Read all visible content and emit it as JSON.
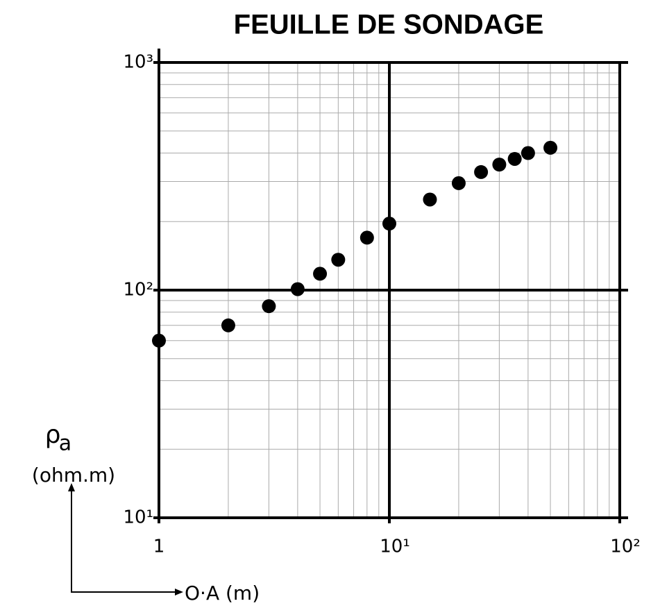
{
  "chart_data": {
    "type": "scatter",
    "title": "FEUILLE DE SONDAGE",
    "xlabel": "O·A (m)",
    "ylabel_symbol": "ρ",
    "ylabel_subscript": "a",
    "ylabel_unit": "(ohm.m)",
    "xscale": "log",
    "yscale": "log",
    "grid": true,
    "color": "#000000",
    "xlim": [
      1,
      100
    ],
    "ylim": [
      10,
      1000
    ],
    "xticks": [
      1,
      {
        "value": 10,
        "label": "10¹"
      },
      {
        "value": 100,
        "label": "10²"
      }
    ],
    "yticks": [
      {
        "value": 10,
        "label": "10¹"
      },
      {
        "value": 100,
        "label": "10²"
      },
      {
        "value": 1000,
        "label": "10³"
      }
    ],
    "minor_xticks": [
      2,
      3,
      4,
      5,
      6,
      7,
      8,
      9,
      20,
      30,
      40,
      50,
      60,
      70,
      80,
      90
    ],
    "minor_yticks": [
      20,
      30,
      40,
      50,
      60,
      70,
      80,
      90,
      200,
      300,
      400,
      500,
      600,
      700,
      800,
      900
    ],
    "x": [
      1,
      2,
      3,
      4,
      5,
      6,
      8,
      10,
      15,
      20,
      25,
      30,
      35,
      40,
      50
    ],
    "values": [
      60,
      70,
      85,
      101,
      118,
      136,
      170,
      196,
      250,
      295,
      330,
      356,
      377,
      400,
      422
    ]
  }
}
